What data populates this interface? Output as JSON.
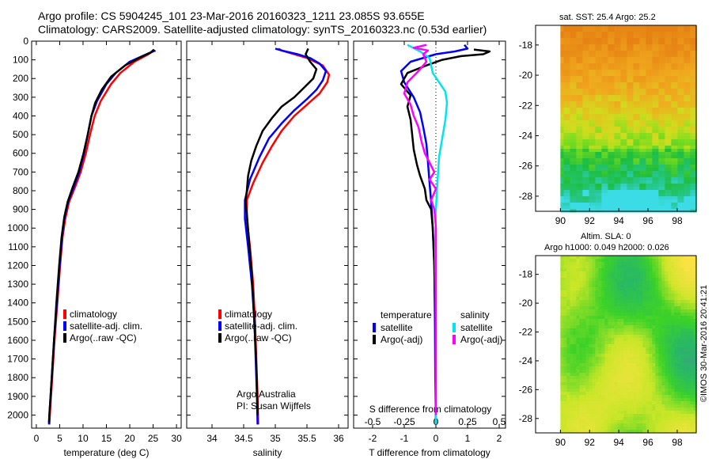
{
  "header": {
    "line1": "Argo profile: CS 5904245_101 23-Mar-2016 20160323_1211 23.085S 93.655E",
    "line2": "Climatology: CARS2009. Satellite-adjusted climatology: synTS_20160323.nc (0.53d earlier)"
  },
  "credit": "©IMOS 30-Mar-2016 20:41:21",
  "colors": {
    "climatology": "#ff0000",
    "satellite": "#0000ff",
    "argo": "#000000",
    "sat_salinity": "#00e5ee",
    "argo_salinity": "#ff00ff"
  },
  "chart_data": [
    {
      "type": "line",
      "id": "temperature",
      "xlabel": "temperature (deg C)",
      "ylabel": "",
      "xlim": [
        -1,
        31
      ],
      "ylim": [
        2070,
        0
      ],
      "xticks": [
        0,
        5,
        10,
        15,
        20,
        25,
        30
      ],
      "yticks": [
        0,
        100,
        200,
        300,
        400,
        500,
        600,
        700,
        800,
        900,
        1000,
        1100,
        1200,
        1300,
        1400,
        1500,
        1600,
        1700,
        1800,
        1900,
        2000
      ],
      "legend": [
        "climatology",
        "satellite-adj. clim.",
        "Argo(..raw -QC)"
      ],
      "legend_position": "lower-center",
      "series": [
        {
          "name": "climatology",
          "color": "#ff0000",
          "points": [
            [
              25.2,
              50
            ],
            [
              24,
              70
            ],
            [
              21,
              110
            ],
            [
              18,
              170
            ],
            [
              16,
              230
            ],
            [
              13.8,
              320
            ],
            [
              12.5,
              400
            ],
            [
              11.5,
              500
            ],
            [
              10.6,
              600
            ],
            [
              9.5,
              700
            ],
            [
              8.3,
              780
            ],
            [
              7,
              860
            ],
            [
              6.2,
              950
            ],
            [
              5.6,
              1050
            ],
            [
              5.1,
              1200
            ],
            [
              4.5,
              1400
            ],
            [
              3.9,
              1600
            ],
            [
              3.4,
              1800
            ],
            [
              2.9,
              2000
            ],
            [
              2.8,
              2050
            ]
          ]
        },
        {
          "name": "satellite-adj. clim.",
          "color": "#0000ff",
          "points": [
            [
              25.5,
              50
            ],
            [
              24,
              65
            ],
            [
              20,
              110
            ],
            [
              17,
              170
            ],
            [
              15,
              230
            ],
            [
              13,
              320
            ],
            [
              11.8,
              400
            ],
            [
              11,
              500
            ],
            [
              10.2,
              600
            ],
            [
              9.2,
              700
            ],
            [
              8,
              780
            ],
            [
              6.8,
              860
            ],
            [
              6,
              950
            ],
            [
              5.5,
              1050
            ],
            [
              5,
              1200
            ],
            [
              4.4,
              1400
            ],
            [
              3.8,
              1600
            ],
            [
              3.3,
              1800
            ],
            [
              2.8,
              2000
            ],
            [
              2.7,
              2050
            ]
          ]
        },
        {
          "name": "Argo(..raw -QC)",
          "color": "#000000",
          "points": [
            [
              25.2,
              45
            ],
            [
              24.5,
              60
            ],
            [
              22,
              90
            ],
            [
              19,
              130
            ],
            [
              16,
              190
            ],
            [
              14,
              260
            ],
            [
              12.6,
              330
            ],
            [
              11.8,
              400
            ],
            [
              11,
              500
            ],
            [
              10.1,
              600
            ],
            [
              9,
              700
            ],
            [
              7.8,
              780
            ],
            [
              6.7,
              860
            ],
            [
              6,
              940
            ],
            [
              5.4,
              1050
            ],
            [
              4.9,
              1200
            ],
            [
              4.3,
              1400
            ],
            [
              3.8,
              1600
            ],
            [
              3.3,
              1800
            ],
            [
              2.8,
              2000
            ],
            [
              2.7,
              2040
            ]
          ]
        }
      ]
    },
    {
      "type": "line",
      "id": "salinity",
      "xlabel": "salinity",
      "ylabel": "",
      "xlim": [
        33.6,
        36.15
      ],
      "ylim": [
        2070,
        0
      ],
      "xticks": [
        34,
        34.5,
        35,
        35.5,
        36
      ],
      "legend": [
        "climatology",
        "satellite-adj. clim.",
        "Argo(..raw -QC)"
      ],
      "legend_position": "lower-center",
      "annotation": [
        "Argo Australia",
        "PI: Susan Wijffels"
      ],
      "series": [
        {
          "name": "climatology",
          "color": "#ff0000",
          "points": [
            [
              35.05,
              40
            ],
            [
              35.1,
              50
            ],
            [
              35.3,
              70
            ],
            [
              35.5,
              90
            ],
            [
              35.75,
              130
            ],
            [
              35.85,
              180
            ],
            [
              35.82,
              220
            ],
            [
              35.7,
              280
            ],
            [
              35.5,
              340
            ],
            [
              35.3,
              400
            ],
            [
              35.1,
              480
            ],
            [
              34.95,
              560
            ],
            [
              34.8,
              650
            ],
            [
              34.65,
              760
            ],
            [
              34.55,
              850
            ],
            [
              34.55,
              950
            ],
            [
              34.6,
              1100
            ],
            [
              34.65,
              1300
            ],
            [
              34.68,
              1500
            ],
            [
              34.7,
              1700
            ],
            [
              34.72,
              1900
            ],
            [
              34.73,
              2050
            ]
          ]
        },
        {
          "name": "satellite-adj. clim.",
          "color": "#0000ff",
          "points": [
            [
              35,
              40
            ],
            [
              35.1,
              50
            ],
            [
              35.35,
              70
            ],
            [
              35.55,
              90
            ],
            [
              35.7,
              120
            ],
            [
              35.8,
              160
            ],
            [
              35.75,
              210
            ],
            [
              35.65,
              260
            ],
            [
              35.5,
              310
            ],
            [
              35.3,
              370
            ],
            [
              35.1,
              440
            ],
            [
              34.9,
              520
            ],
            [
              34.75,
              620
            ],
            [
              34.6,
              740
            ],
            [
              34.52,
              850
            ],
            [
              34.52,
              950
            ],
            [
              34.57,
              1100
            ],
            [
              34.63,
              1300
            ],
            [
              34.67,
              1500
            ],
            [
              34.69,
              1700
            ],
            [
              34.71,
              1900
            ],
            [
              34.72,
              2050
            ]
          ]
        },
        {
          "name": "Argo(..raw -QC)",
          "color": "#000000",
          "points": [
            [
              35.52,
              40
            ],
            [
              35.48,
              70
            ],
            [
              35.55,
              110
            ],
            [
              35.65,
              150
            ],
            [
              35.6,
              200
            ],
            [
              35.45,
              250
            ],
            [
              35.3,
              300
            ],
            [
              35.1,
              350
            ],
            [
              34.95,
              410
            ],
            [
              34.8,
              480
            ],
            [
              34.7,
              560
            ],
            [
              34.62,
              640
            ],
            [
              34.57,
              720
            ],
            [
              34.55,
              800
            ],
            [
              34.53,
              860
            ],
            [
              34.55,
              920
            ],
            [
              34.58,
              1050
            ],
            [
              34.63,
              1250
            ],
            [
              34.66,
              1450
            ],
            [
              34.69,
              1650
            ],
            [
              34.71,
              1850
            ],
            [
              34.72,
              2000
            ]
          ]
        }
      ]
    },
    {
      "type": "line",
      "id": "difference",
      "xlabel": "T difference from climatology",
      "xlabel_top": "S difference from climatology",
      "ylabel": "",
      "xlim": [
        -2.6,
        2.2
      ],
      "ylim": [
        2070,
        0
      ],
      "xticks": [
        -2,
        -1,
        0,
        1,
        2
      ],
      "xticks_top": [
        -0.5,
        -0.25,
        0,
        0.25,
        0.5
      ],
      "xticks_top_labels": [
        "-0.5",
        "-0.25",
        "0",
        "0.25",
        "0.5"
      ],
      "legend_groups": [
        {
          "title": "temperature",
          "items": [
            "satellite",
            "Argo(-adj)"
          ]
        },
        {
          "title": "salinity",
          "items": [
            "satellite",
            "Argo(-adj)"
          ]
        }
      ],
      "legend_position": "lower-center",
      "series": [
        {
          "name": "satellite",
          "group": "temperature",
          "color": "#0000ff",
          "points": [
            [
              0.9,
              20
            ],
            [
              1,
              40
            ],
            [
              0.6,
              55
            ],
            [
              0,
              70
            ],
            [
              -0.8,
              110
            ],
            [
              -1.1,
              160
            ],
            [
              -1,
              220
            ],
            [
              -0.7,
              300
            ],
            [
              -0.5,
              380
            ],
            [
              -0.4,
              460
            ],
            [
              -0.3,
              550
            ],
            [
              -0.25,
              650
            ],
            [
              -0.2,
              760
            ],
            [
              -0.15,
              860
            ],
            [
              -0.1,
              1000
            ],
            [
              -0.05,
              1200
            ],
            [
              -0.03,
              1500
            ],
            [
              -0.02,
              1800
            ],
            [
              0,
              2050
            ]
          ]
        },
        {
          "name": "Argo(-adj)",
          "group": "temperature",
          "color": "#000000",
          "points": [
            [
              1.2,
              45
            ],
            [
              1.7,
              55
            ],
            [
              1.5,
              70
            ],
            [
              0.8,
              80
            ],
            [
              0.2,
              100
            ],
            [
              -0.3,
              130
            ],
            [
              -0.9,
              170
            ],
            [
              -1.1,
              230
            ],
            [
              -0.8,
              290
            ],
            [
              -0.9,
              350
            ],
            [
              -0.8,
              420
            ],
            [
              -0.75,
              500
            ],
            [
              -0.7,
              580
            ],
            [
              -0.6,
              660
            ],
            [
              -0.5,
              720
            ],
            [
              -0.35,
              790
            ],
            [
              -0.3,
              850
            ],
            [
              -0.15,
              900
            ],
            [
              -0.1,
              1000
            ],
            [
              -0.05,
              1200
            ],
            [
              -0.02,
              1500
            ],
            [
              0,
              2000
            ]
          ]
        },
        {
          "name": "satellite",
          "group": "salinity",
          "color": "#00e5ee",
          "points": [
            [
              -0.9,
              20
            ],
            [
              -0.5,
              55
            ],
            [
              -0.2,
              90
            ],
            [
              -0.15,
              130
            ],
            [
              -0.1,
              170
            ],
            [
              0.1,
              220
            ],
            [
              0.3,
              270
            ],
            [
              0.35,
              330
            ],
            [
              0.3,
              420
            ],
            [
              0.2,
              520
            ],
            [
              0.1,
              620
            ],
            [
              0.05,
              750
            ],
            [
              0,
              900
            ],
            [
              -0.02,
              1100
            ],
            [
              0,
              1500
            ],
            [
              0,
              2050
            ]
          ]
        },
        {
          "name": "Argo(-adj)",
          "group": "salinity",
          "color": "#ff00ff",
          "points": [
            [
              -0.3,
              20
            ],
            [
              -0.7,
              35
            ],
            [
              -0.25,
              50
            ],
            [
              -0.4,
              70
            ],
            [
              -0.3,
              110
            ],
            [
              -0.55,
              160
            ],
            [
              -0.9,
              220
            ],
            [
              -1,
              280
            ],
            [
              -0.8,
              340
            ],
            [
              -0.7,
              400
            ],
            [
              -0.55,
              460
            ],
            [
              -0.45,
              540
            ],
            [
              -0.35,
              600
            ],
            [
              -0.2,
              650
            ],
            [
              -0.05,
              700
            ],
            [
              -0.2,
              740
            ],
            [
              0,
              790
            ],
            [
              -0.15,
              850
            ],
            [
              -0.05,
              900
            ],
            [
              0,
              1000
            ],
            [
              0,
              2000
            ]
          ]
        }
      ]
    },
    {
      "type": "heatmap",
      "id": "sst_map",
      "title": "sat. SST: 25.4  Argo: 25.2",
      "xlim": [
        88.3,
        99.3
      ],
      "ylim": [
        -29,
        -16.7
      ],
      "xticks": [
        90,
        92,
        94,
        96,
        98
      ],
      "yticks": [
        -18,
        -20,
        -22,
        -24,
        -26,
        -28
      ],
      "data_extent_x": [
        90,
        99.3
      ],
      "palette": "orange-to-cyan"
    },
    {
      "type": "heatmap",
      "id": "sla_map",
      "title": "Altim. SLA: 0",
      "subtitle": "Argo h1000: 0.049  h2000: 0.026",
      "xlim": [
        88.3,
        99.3
      ],
      "ylim": [
        -29,
        -16.7
      ],
      "xticks": [
        90,
        92,
        94,
        96,
        98
      ],
      "yticks": [
        -18,
        -20,
        -22,
        -24,
        -26,
        -28
      ],
      "data_extent_x": [
        90,
        99.3
      ],
      "palette": "green-yellow"
    }
  ]
}
